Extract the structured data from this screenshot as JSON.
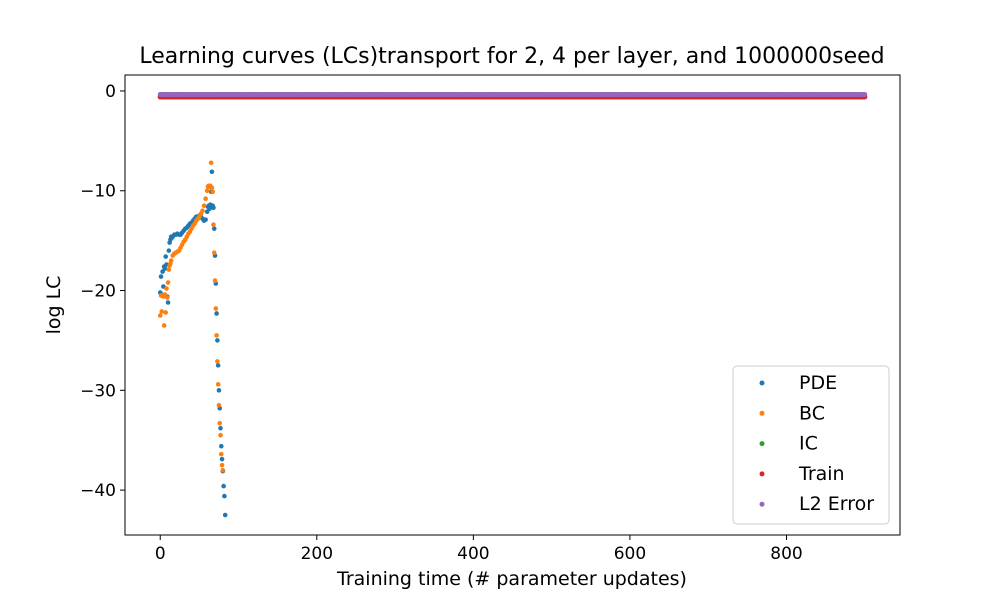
{
  "chart_data": {
    "type": "scatter",
    "title": "Learning curves (LCs)transport for 2, 4 per layer, and 1000000seed",
    "xlabel": "Training time (# parameter updates)",
    "ylabel": "log LC",
    "xlim": [
      -45,
      945
    ],
    "ylim": [
      -44.5,
      1.6
    ],
    "xticks": [
      0,
      200,
      400,
      600,
      800
    ],
    "xtick_labels": [
      "0",
      "200",
      "400",
      "600",
      "800"
    ],
    "yticks": [
      0,
      -10,
      -20,
      -30,
      -40
    ],
    "ytick_labels": [
      "0",
      "−10",
      "−20",
      "−30",
      "−40"
    ],
    "grid": false,
    "legend_position": "lower-right",
    "series": [
      {
        "name": "PDE",
        "color": "#1f77b4",
        "points": [
          [
            0,
            -20.2
          ],
          [
            1,
            -18.6
          ],
          [
            2,
            -20.4
          ],
          [
            3,
            -18.1
          ],
          [
            4,
            -19.6
          ],
          [
            5,
            -17.6
          ],
          [
            6,
            -17.8
          ],
          [
            7,
            -16.6
          ],
          [
            8,
            -17.4
          ],
          [
            9,
            -20.6
          ],
          [
            10,
            -21.2
          ],
          [
            11,
            -16.0
          ],
          [
            12,
            -15.2
          ],
          [
            13,
            -14.9
          ],
          [
            14,
            -14.6
          ],
          [
            15,
            -14.7
          ],
          [
            16,
            -14.6
          ],
          [
            18,
            -14.4
          ],
          [
            20,
            -14.4
          ],
          [
            22,
            -14.3
          ],
          [
            24,
            -14.4
          ],
          [
            26,
            -14.4
          ],
          [
            28,
            -14.2
          ],
          [
            30,
            -14.0
          ],
          [
            32,
            -13.8
          ],
          [
            34,
            -13.7
          ],
          [
            36,
            -13.5
          ],
          [
            38,
            -13.3
          ],
          [
            40,
            -13.2
          ],
          [
            42,
            -13.0
          ],
          [
            44,
            -12.8
          ],
          [
            46,
            -12.6
          ],
          [
            48,
            -12.6
          ],
          [
            50,
            -12.5
          ],
          [
            52,
            -12.6
          ],
          [
            54,
            -12.8
          ],
          [
            56,
            -13.0
          ],
          [
            58,
            -12.9
          ],
          [
            60,
            -12.1
          ],
          [
            61,
            -11.6
          ],
          [
            62,
            -11.5
          ],
          [
            63,
            -11.8
          ],
          [
            64,
            -11.4
          ],
          [
            65,
            -10.1
          ],
          [
            66,
            -8.1
          ],
          [
            67,
            -11.5
          ],
          [
            68,
            -11.7
          ],
          [
            69,
            -13.8
          ],
          [
            70,
            -16.5
          ],
          [
            71,
            -19.3
          ],
          [
            72,
            -22.3
          ],
          [
            73,
            -25.0
          ],
          [
            74,
            -27.5
          ],
          [
            75,
            -30.0
          ],
          [
            76,
            -31.8
          ],
          [
            77,
            -33.8
          ],
          [
            78,
            -35.6
          ],
          [
            79,
            -36.9
          ],
          [
            80,
            -38.1
          ],
          [
            81,
            -39.6
          ],
          [
            82,
            -40.6
          ],
          [
            83,
            -42.5
          ]
        ]
      },
      {
        "name": "BC",
        "color": "#ff7f0e",
        "points": [
          [
            0,
            -22.5
          ],
          [
            1,
            -20.5
          ],
          [
            2,
            -22.1
          ],
          [
            3,
            -20.5
          ],
          [
            4,
            -20.6
          ],
          [
            5,
            -23.5
          ],
          [
            6,
            -20.4
          ],
          [
            7,
            -22.2
          ],
          [
            8,
            -19.8
          ],
          [
            9,
            -20.7
          ],
          [
            10,
            -19.2
          ],
          [
            11,
            -17.9
          ],
          [
            12,
            -17.5
          ],
          [
            13,
            -17.3
          ],
          [
            14,
            -17.0
          ],
          [
            16,
            -16.5
          ],
          [
            18,
            -16.3
          ],
          [
            20,
            -16.2
          ],
          [
            22,
            -16.1
          ],
          [
            24,
            -16.0
          ],
          [
            26,
            -15.7
          ],
          [
            28,
            -15.4
          ],
          [
            30,
            -15.1
          ],
          [
            32,
            -14.9
          ],
          [
            34,
            -14.6
          ],
          [
            36,
            -14.3
          ],
          [
            38,
            -14.1
          ],
          [
            40,
            -13.8
          ],
          [
            42,
            -13.5
          ],
          [
            44,
            -13.3
          ],
          [
            46,
            -13.0
          ],
          [
            48,
            -12.8
          ],
          [
            50,
            -12.6
          ],
          [
            52,
            -12.3
          ],
          [
            54,
            -12.0
          ],
          [
            56,
            -11.5
          ],
          [
            58,
            -10.8
          ],
          [
            60,
            -10.0
          ],
          [
            61,
            -9.6
          ],
          [
            62,
            -9.5
          ],
          [
            63,
            -9.6
          ],
          [
            64,
            -9.5
          ],
          [
            65,
            -7.2
          ],
          [
            66,
            -9.7
          ],
          [
            67,
            -10.1
          ],
          [
            68,
            -13.4
          ],
          [
            69,
            -16.2
          ],
          [
            70,
            -19.0
          ],
          [
            71,
            -21.8
          ],
          [
            72,
            -24.5
          ],
          [
            73,
            -27.1
          ],
          [
            74,
            -29.4
          ],
          [
            75,
            -31.5
          ],
          [
            76,
            -33.3
          ],
          [
            77,
            -34.5
          ],
          [
            78,
            -36.4
          ],
          [
            79,
            -37.5
          ],
          [
            80,
            -38.0
          ]
        ]
      },
      {
        "name": "IC",
        "color": "#2ca02c",
        "constant": -0.6,
        "x_range": [
          0,
          900
        ]
      },
      {
        "name": "Train",
        "color": "#d62728",
        "constant": -0.6,
        "x_range": [
          0,
          900
        ]
      },
      {
        "name": "L2 Error",
        "color": "#9467bd",
        "constant": -0.35,
        "x_range": [
          0,
          900
        ]
      }
    ]
  }
}
